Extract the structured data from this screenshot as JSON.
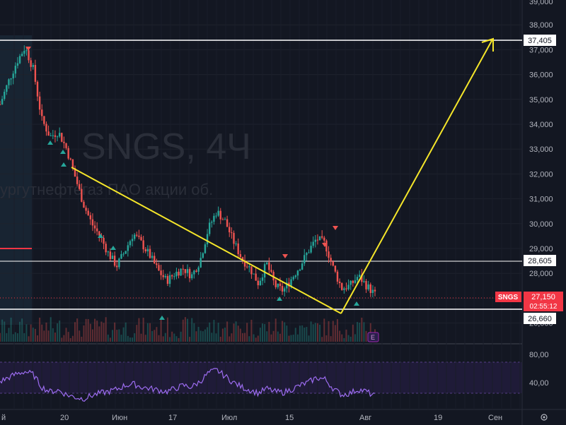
{
  "watermark": {
    "symbol_line": "SNGS, 4Ч",
    "name_line": "ургутнефтегаз ПАО акции об."
  },
  "price_scale": {
    "ticks": [
      "38,000",
      "37,000",
      "36,000",
      "35,000",
      "34,000",
      "33,000",
      "32,000",
      "31,000",
      "30,000",
      "29,000",
      "28,000",
      "27,000",
      "26,000"
    ],
    "tick_values": [
      38000,
      37000,
      36000,
      35000,
      34000,
      33000,
      32000,
      31000,
      30000,
      29000,
      28000,
      27000,
      26000
    ],
    "top_partial_label": "39,000"
  },
  "rsi_scale": {
    "ticks": [
      "80,00",
      "40,00"
    ],
    "tick_values": [
      80,
      40
    ]
  },
  "time_axis": {
    "labels": [
      "й",
      "20",
      "Июн",
      "17",
      "Июл",
      "15",
      "Авг",
      "19",
      "Сен"
    ]
  },
  "horizontal_levels": [
    {
      "label": "37,405",
      "value": 37405
    },
    {
      "label": "28,605",
      "value": 28605
    },
    {
      "label": "26,660",
      "value": 26660
    }
  ],
  "current_price": {
    "ticker": "SNGS",
    "price": "27,150",
    "countdown": "02:55:12",
    "value": 27150
  },
  "event_badge": "E",
  "corner_icon": "settings-icon",
  "colors": {
    "background": "#131722",
    "up": "#26a69a",
    "down": "#ef5350",
    "trendline": "#f5e62a",
    "rsi_line": "#9c6cf0",
    "level_line": "#ffffff",
    "price_tag": "#f23645"
  },
  "chart_data": {
    "type": "candlestick",
    "symbol": "SNGS",
    "timeframe": "4Ч",
    "ylim": [
      26000,
      39000
    ],
    "close_path": [
      {
        "x": 0,
        "y": 34800
      },
      {
        "x": 1,
        "y": 35700
      },
      {
        "x": 2,
        "y": 36500
      },
      {
        "x": 3,
        "y": 37100
      },
      {
        "x": 4,
        "y": 36200
      },
      {
        "x": 5,
        "y": 34200
      },
      {
        "x": 6,
        "y": 33500
      },
      {
        "x": 7,
        "y": 33700
      },
      {
        "x": 8,
        "y": 33000
      },
      {
        "x": 9,
        "y": 31900
      },
      {
        "x": 10,
        "y": 30800
      },
      {
        "x": 11,
        "y": 30000
      },
      {
        "x": 12,
        "y": 29500
      },
      {
        "x": 13,
        "y": 28800
      },
      {
        "x": 14,
        "y": 28300
      },
      {
        "x": 15,
        "y": 28900
      },
      {
        "x": 16,
        "y": 29600
      },
      {
        "x": 17,
        "y": 29200
      },
      {
        "x": 18,
        "y": 28700
      },
      {
        "x": 19,
        "y": 28100
      },
      {
        "x": 20,
        "y": 27700
      },
      {
        "x": 21,
        "y": 28000
      },
      {
        "x": 22,
        "y": 28200
      },
      {
        "x": 23,
        "y": 27900
      },
      {
        "x": 24,
        "y": 28500
      },
      {
        "x": 25,
        "y": 29800
      },
      {
        "x": 26,
        "y": 30500
      },
      {
        "x": 27,
        "y": 30100
      },
      {
        "x": 28,
        "y": 29300
      },
      {
        "x": 29,
        "y": 28600
      },
      {
        "x": 30,
        "y": 28200
      },
      {
        "x": 31,
        "y": 27600
      },
      {
        "x": 32,
        "y": 28400
      },
      {
        "x": 33,
        "y": 27500
      },
      {
        "x": 34,
        "y": 27300
      },
      {
        "x": 35,
        "y": 27800
      },
      {
        "x": 36,
        "y": 28300
      },
      {
        "x": 37,
        "y": 28900
      },
      {
        "x": 38,
        "y": 29400
      },
      {
        "x": 39,
        "y": 29200
      },
      {
        "x": 40,
        "y": 28200
      },
      {
        "x": 41,
        "y": 27400
      },
      {
        "x": 42,
        "y": 27500
      },
      {
        "x": 43,
        "y": 27900
      },
      {
        "x": 44,
        "y": 27500
      },
      {
        "x": 45,
        "y": 27150
      }
    ],
    "trendlines": [
      {
        "from": {
          "x": 8,
          "y": 32100
        },
        "to": {
          "x": 41,
          "y": 26700
        }
      },
      {
        "from": {
          "x": 41,
          "y": 26700
        },
        "to": {
          "x": 61,
          "y": 37400
        }
      }
    ],
    "rsi": [
      55,
      60,
      65,
      68,
      64,
      48,
      42,
      44,
      38,
      35,
      33,
      37,
      40,
      42,
      45,
      50,
      52,
      48,
      46,
      44,
      42,
      46,
      50,
      48,
      55,
      66,
      70,
      62,
      54,
      48,
      44,
      40,
      46,
      42,
      41,
      45,
      50,
      54,
      60,
      58,
      46,
      38,
      40,
      45,
      42,
      36
    ]
  }
}
